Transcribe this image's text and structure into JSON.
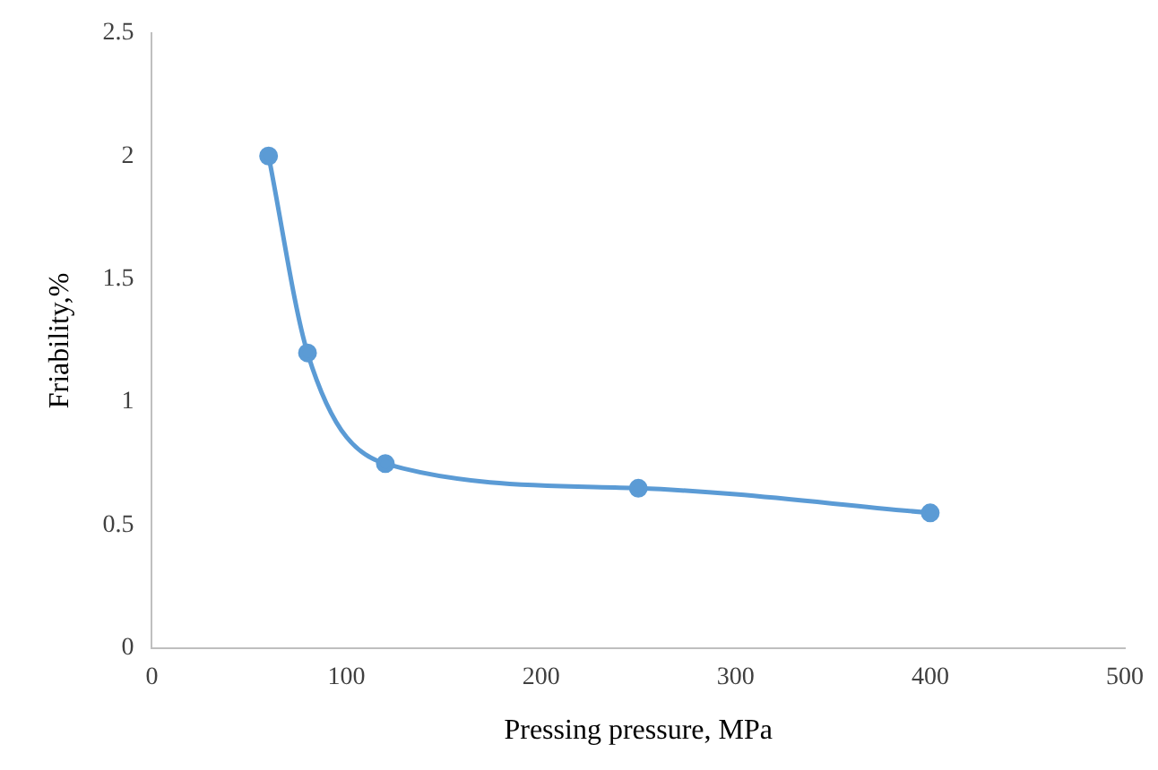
{
  "chart_data": {
    "type": "line",
    "xlabel": "Pressing pressure, MPa",
    "ylabel": "Friability,%",
    "x": [
      60,
      80,
      120,
      250,
      400
    ],
    "series": [
      {
        "color": "#5b9bd5",
        "values": [
          2,
          1.2,
          0.75,
          0.65,
          0.55
        ]
      }
    ],
    "xlim": [
      0,
      500
    ],
    "xticks": [
      0,
      100,
      200,
      300,
      400,
      500
    ],
    "ylim": [
      0,
      2.5
    ],
    "yticks": [
      0,
      0.5,
      1,
      1.5,
      2,
      2.5
    ],
    "grid": false,
    "legend": false,
    "marker": "circle",
    "line_style": "solid"
  }
}
